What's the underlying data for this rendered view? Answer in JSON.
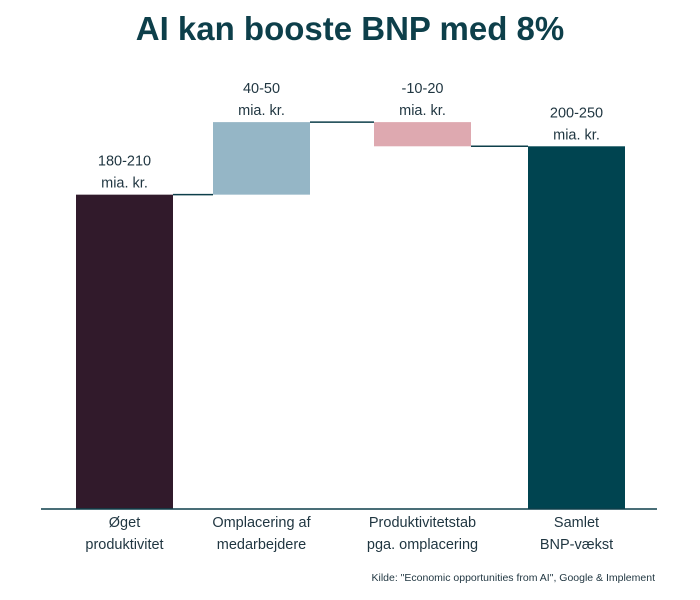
{
  "chart_data": {
    "type": "waterfall",
    "title": "AI kan booste BNP med 8%",
    "source": "Kilde: \"Economic opportunities from AI\", Google & Implement",
    "value_unit": "mia. kr.",
    "ylim": [
      0,
      250
    ],
    "grid": false,
    "legend": "none",
    "categories": [
      [
        "Øget",
        "produktivitet"
      ],
      [
        "Omplacering af",
        "medarbejdere"
      ],
      [
        "Produktivitetstab",
        "pga. omplacering"
      ],
      [
        "Samlet",
        "BNP-vækst"
      ]
    ],
    "bars": [
      {
        "kind": "increase",
        "start": 0,
        "end": 195,
        "label": [
          "180-210",
          "mia. kr."
        ],
        "color": "#311a2b",
        "label_color": "#1f3540"
      },
      {
        "kind": "increase",
        "start": 195,
        "end": 240,
        "label": [
          "40-50",
          "mia. kr."
        ],
        "color": "#95b6c6",
        "label_color": "#1f3540"
      },
      {
        "kind": "decrease",
        "start": 240,
        "end": 225,
        "label": [
          "-10-20",
          "mia. kr."
        ],
        "color": "#dea9b0",
        "label_color": "#e05a57"
      },
      {
        "kind": "total",
        "start": 0,
        "end": 225,
        "label": [
          "200-250",
          "mia. kr."
        ],
        "color": "#004450",
        "label_color": "#1f3540"
      }
    ],
    "colors": {
      "title": "#0d3f4a",
      "axis": "#0d3f4a",
      "connector": "#0d3f4a",
      "text": "#1f3540"
    }
  }
}
